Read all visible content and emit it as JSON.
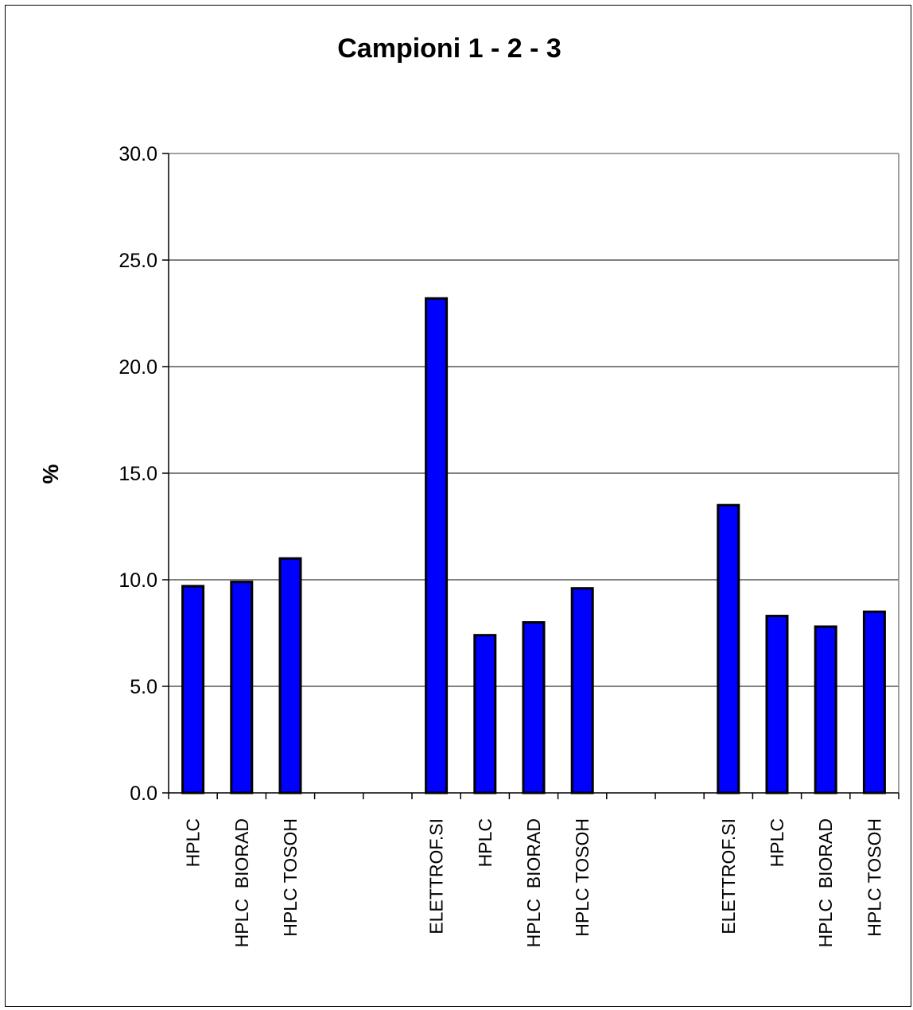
{
  "chart_data": {
    "type": "bar",
    "title": "Campioni  1 - 2 - 3",
    "xlabel": "",
    "ylabel": "%",
    "ylim": [
      0,
      30
    ],
    "yticks": [
      "0.0",
      "5.0",
      "10.0",
      "15.0",
      "20.0",
      "25.0",
      "30.0"
    ],
    "grid": true,
    "legend": "none",
    "bar_color": "#0000FF",
    "categories": [
      "HPLC",
      "HPLC  BIORAD",
      "HPLC TOSOH",
      "",
      "",
      "ELETTROF.SI",
      "HPLC",
      "HPLC  BIORAD",
      "HPLC TOSOH",
      "",
      "",
      "ELETTROF.SI",
      "HPLC",
      "HPLC  BIORAD",
      "HPLC TOSOH"
    ],
    "values": [
      9.7,
      9.9,
      11.0,
      null,
      null,
      23.2,
      7.4,
      8.0,
      9.6,
      null,
      null,
      13.5,
      8.3,
      7.8,
      8.5
    ]
  }
}
